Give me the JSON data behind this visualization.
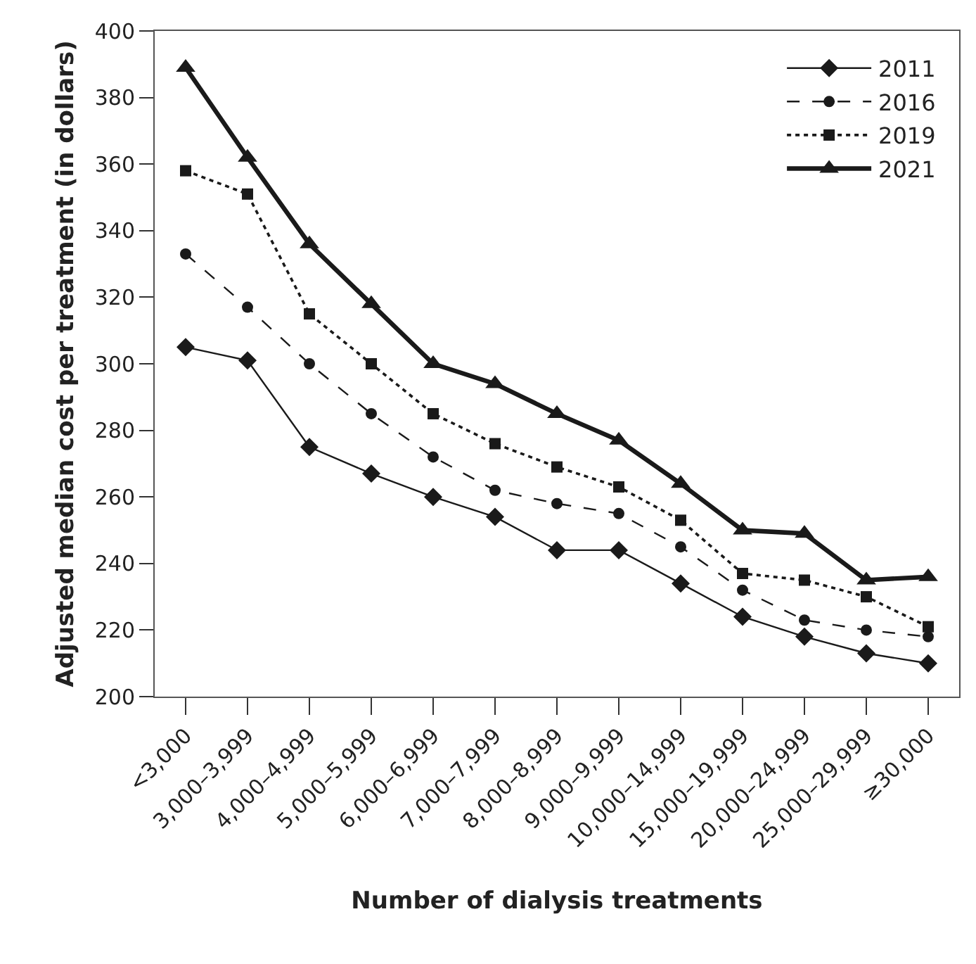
{
  "chart_data": {
    "type": "line",
    "xlabel": "Number of dialysis treatments",
    "ylabel": "Adjusted median cost per treatment (in dollars)",
    "categories": [
      "<3,000",
      "3,000–3,999",
      "4,000–4,999",
      "5,000–5,999",
      "6,000–6,999",
      "7,000–7,999",
      "8,000–8,999",
      "9,000–9,999",
      "10,000–14,999",
      "15,000–19,999",
      "20,000–24,999",
      "25,000–29,999",
      "≥30,000"
    ],
    "ylim": [
      200,
      400
    ],
    "yticks": [
      200,
      220,
      240,
      260,
      280,
      300,
      320,
      340,
      360,
      380,
      400
    ],
    "grid": false,
    "legend": "top right",
    "series": [
      {
        "name": "2011",
        "color": "#1a1a1a",
        "marker": "diamond",
        "line_style": "solid",
        "values": [
          305,
          301,
          275,
          267,
          260,
          254,
          244,
          244,
          234,
          224,
          218,
          213,
          210
        ]
      },
      {
        "name": "2016",
        "color": "#1a1a1a",
        "marker": "circle",
        "line_style": "dashed",
        "values": [
          333,
          317,
          300,
          285,
          272,
          262,
          258,
          255,
          245,
          232,
          223,
          220,
          218
        ]
      },
      {
        "name": "2019",
        "color": "#1a1a1a",
        "marker": "square",
        "line_style": "dotted",
        "values": [
          358,
          351,
          315,
          300,
          285,
          276,
          269,
          263,
          253,
          237,
          235,
          230,
          221
        ]
      },
      {
        "name": "2021",
        "color": "#1a1a1a",
        "marker": "triangle",
        "line_style": "solid",
        "values": [
          389,
          362,
          336,
          318,
          300,
          294,
          285,
          277,
          264,
          250,
          249,
          235,
          236
        ]
      }
    ]
  }
}
